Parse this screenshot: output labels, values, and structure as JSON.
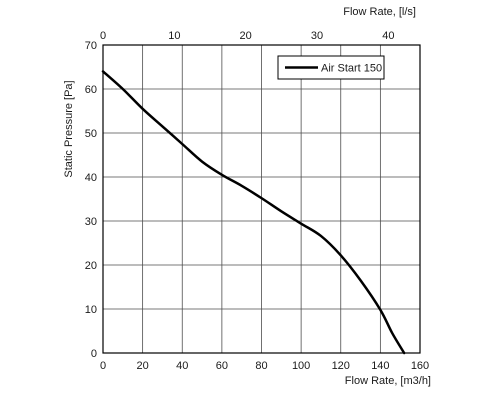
{
  "chart_data": {
    "type": "line",
    "title": "",
    "xlabel": "Flow Rate, [m3/h]",
    "ylabel": "Static Pressure [Pa]",
    "x2label": "Flow Rate, [l/s]",
    "xlim": [
      0,
      160
    ],
    "ylim": [
      0,
      70
    ],
    "x2lim": [
      0,
      44.44
    ],
    "x_ticks": [
      0,
      20,
      40,
      60,
      80,
      100,
      120,
      140,
      160
    ],
    "y_ticks": [
      0,
      10,
      20,
      30,
      40,
      50,
      60,
      70
    ],
    "x2_ticks": [
      0,
      10,
      20,
      30,
      40
    ],
    "grid": true,
    "legend_position": "top-right",
    "series": [
      {
        "name": "Air Start 150",
        "color": "#000000",
        "x": [
          0,
          10,
          20,
          30,
          40,
          50,
          60,
          70,
          80,
          90,
          100,
          110,
          120,
          130,
          140,
          146,
          152
        ],
        "y": [
          64,
          60,
          55.5,
          51.5,
          47.5,
          43.5,
          40.5,
          38,
          35.2,
          32.2,
          29.4,
          26.6,
          22.2,
          16.5,
          9.8,
          4.5,
          0
        ]
      }
    ]
  }
}
